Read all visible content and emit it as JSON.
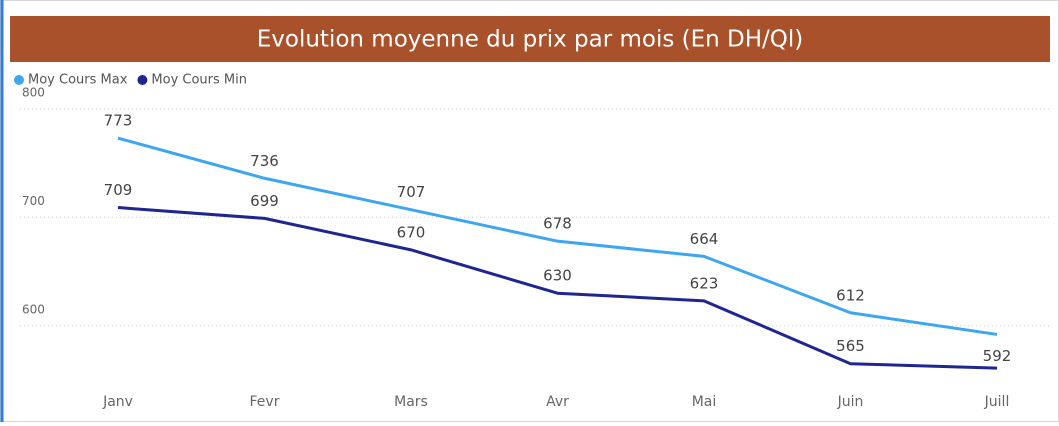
{
  "chart_data": {
    "type": "line",
    "title": "Evolution moyenne du prix par mois (En DH/Ql)",
    "categories": [
      "Janv",
      "Fevr",
      "Mars",
      "Avr",
      "Mai",
      "Juin",
      "Juill"
    ],
    "series": [
      {
        "name": "Moy Cours Max",
        "color": "#3ea6ef",
        "values": [
          773,
          736,
          707,
          678,
          664,
          612,
          592
        ]
      },
      {
        "name": "Moy Cours Min",
        "color": "#1f2690",
        "values": [
          709,
          699,
          670,
          630,
          623,
          565,
          561
        ],
        "value_labels": [
          "709",
          "699",
          "670",
          "630",
          "623",
          "565",
          null
        ]
      }
    ],
    "ylim": [
      550,
      810
    ],
    "yticks": [
      600,
      700,
      800
    ],
    "grid": true,
    "legend": "top-left"
  }
}
